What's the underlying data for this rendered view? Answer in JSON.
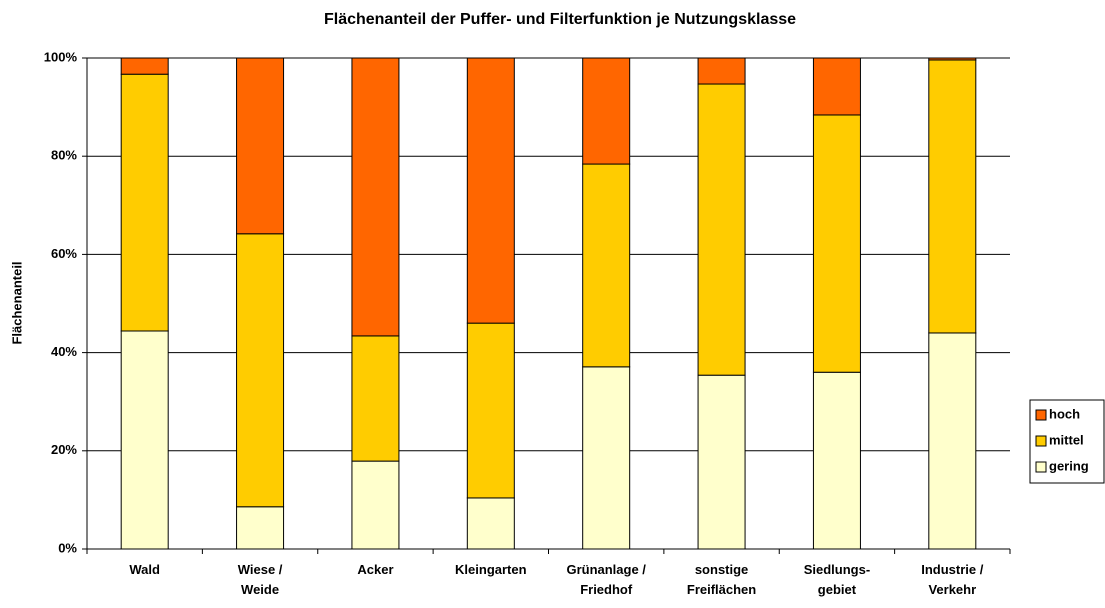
{
  "chart_data": {
    "type": "stacked_bar",
    "title": "Flächenanteil der Puffer- und Filterfunktion je Nutzungsklasse",
    "y_label": "Flächenanteil",
    "categories": [
      [
        "Wald"
      ],
      [
        "Wiese /",
        "Weide"
      ],
      [
        "Acker"
      ],
      [
        "Kleingarten"
      ],
      [
        "Grünanlage /",
        "Friedhof"
      ],
      [
        "sonstige",
        "Freiflächen"
      ],
      [
        "Siedlungs-",
        "gebiet"
      ],
      [
        "Industrie /",
        "Verkehr"
      ]
    ],
    "series": [
      {
        "name": "gering",
        "color": "#ffffcc",
        "values": [
          44.4,
          8.6,
          17.9,
          10.4,
          37.1,
          35.4,
          36.0,
          44.0
        ]
      },
      {
        "name": "mittel",
        "color": "#ffcc00",
        "values": [
          52.3,
          55.6,
          25.5,
          35.6,
          41.3,
          59.3,
          52.4,
          55.6
        ]
      },
      {
        "name": "hoch",
        "color": "#ff6600",
        "values": [
          3.3,
          35.8,
          56.6,
          54.0,
          21.6,
          5.3,
          11.6,
          0.4
        ]
      }
    ],
    "ylim": [
      0,
      100
    ],
    "yticks": [
      {
        "value": 0,
        "label": "0%"
      },
      {
        "value": 20,
        "label": "20%"
      },
      {
        "value": 40,
        "label": "40%"
      },
      {
        "value": 60,
        "label": "60%"
      },
      {
        "value": 80,
        "label": "80%"
      },
      {
        "value": 100,
        "label": "100%"
      }
    ],
    "grid": true
  }
}
